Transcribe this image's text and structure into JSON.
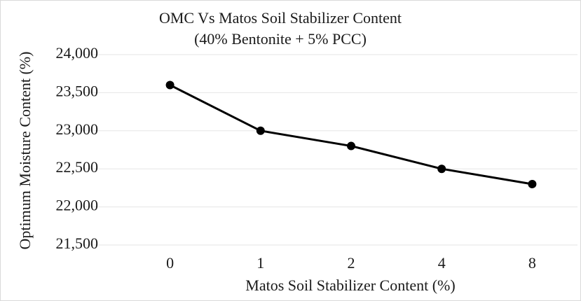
{
  "chart_data": {
    "type": "line",
    "title": "OMC Vs Matos Soil Stabilizer Content",
    "subtitle": "(40% Bentonite + 5% PCC)",
    "x_label": "Matos Soil Stabilizer Content (%)",
    "y_label": "Optimum Moisture Content (%)",
    "categories": [
      "0",
      "1",
      "2",
      "4",
      "8"
    ],
    "series": [
      {
        "name": "OMC",
        "color": "#000000",
        "values": [
          23600,
          23000,
          22800,
          22500,
          22300
        ]
      }
    ],
    "ylim": [
      21500,
      24000
    ],
    "yticks": [
      {
        "value": 21500,
        "label": "21,500"
      },
      {
        "value": 22000,
        "label": "22,000"
      },
      {
        "value": 22500,
        "label": "22,500"
      },
      {
        "value": 23000,
        "label": "23,000"
      },
      {
        "value": 23500,
        "label": "23,500"
      },
      {
        "value": 24000,
        "label": "24,000"
      }
    ],
    "grid": true
  }
}
